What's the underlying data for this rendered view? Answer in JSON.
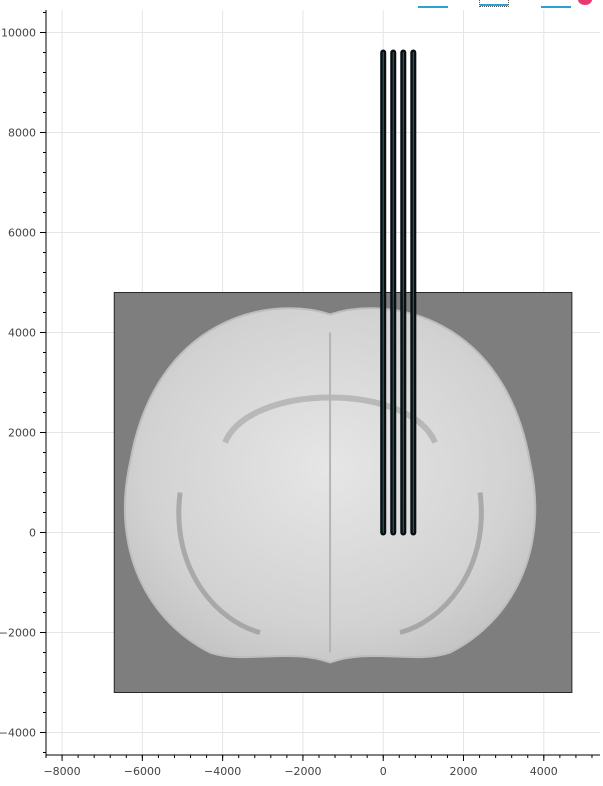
{
  "chart_data": {
    "type": "line",
    "title": "",
    "xlabel": "",
    "ylabel": "",
    "xlim": [
      -8400,
      5400
    ],
    "ylim": [
      -4450,
      10450
    ],
    "x_ticks": [
      -8000,
      -6000,
      -4000,
      -2000,
      0,
      2000,
      4000
    ],
    "y_ticks": [
      -4000,
      -2000,
      0,
      2000,
      4000,
      6000,
      8000,
      10000
    ],
    "x_minor_step": 400,
    "y_minor_step": 400,
    "grid": true,
    "background_image": {
      "name": "brain-atlas-coronal-slice",
      "x_range": [
        -6700,
        4700
      ],
      "y_range": [
        -3200,
        4800
      ],
      "frame_color": "#7e7e7e"
    },
    "series": [
      {
        "x": [
          0,
          0
        ],
        "y": [
          0,
          9600
        ]
      },
      {
        "x": [
          250,
          250
        ],
        "y": [
          0,
          9600
        ]
      },
      {
        "x": [
          500,
          500
        ],
        "y": [
          0,
          9600
        ]
      },
      {
        "x": [
          750,
          750
        ],
        "y": [
          0,
          9600
        ]
      }
    ],
    "series_color": "#0a0f12",
    "series_edge_color": "#2f7f8a"
  },
  "toolbar": {
    "accent_color": "#2da0d6",
    "logo_color": "#e8386f",
    "tools": [
      {
        "name": "pan-tool-icon"
      },
      {
        "name": "box-zoom-tool-icon"
      },
      {
        "name": "wheel-zoom-tool-icon"
      },
      {
        "name": "bokeh-logo-icon"
      }
    ]
  }
}
